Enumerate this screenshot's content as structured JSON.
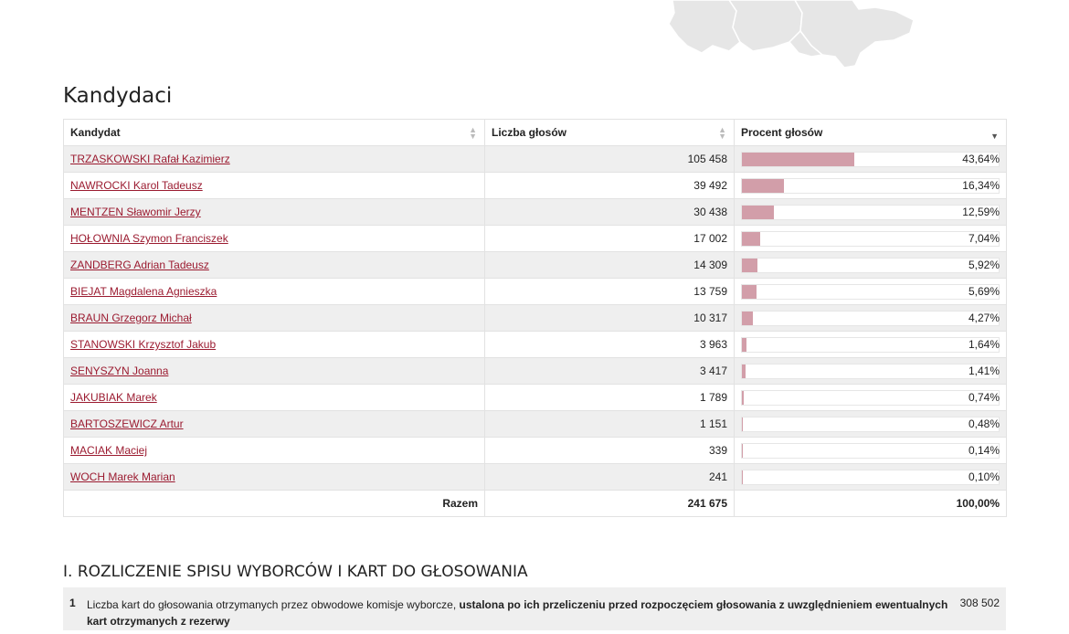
{
  "candidates_section": {
    "title": "Kandydaci",
    "columns": {
      "candidate": "Kandydat",
      "votes": "Liczba głosów",
      "percent": "Procent głosów"
    },
    "rows": [
      {
        "name": "TRZASKOWSKI Rafał Kazimierz",
        "votes": "105 458",
        "percent": "43,64%",
        "share": 43.64
      },
      {
        "name": "NAWROCKI Karol Tadeusz",
        "votes": "39 492",
        "percent": "16,34%",
        "share": 16.34
      },
      {
        "name": "MENTZEN Sławomir Jerzy",
        "votes": "30 438",
        "percent": "12,59%",
        "share": 12.59
      },
      {
        "name": "HOŁOWNIA Szymon Franciszek",
        "votes": "17 002",
        "percent": "7,04%",
        "share": 7.04
      },
      {
        "name": "ZANDBERG Adrian Tadeusz",
        "votes": "14 309",
        "percent": "5,92%",
        "share": 5.92
      },
      {
        "name": "BIEJAT Magdalena Agnieszka",
        "votes": "13 759",
        "percent": "5,69%",
        "share": 5.69
      },
      {
        "name": "BRAUN Grzegorz Michał",
        "votes": "10 317",
        "percent": "4,27%",
        "share": 4.27
      },
      {
        "name": "STANOWSKI Krzysztof Jakub",
        "votes": "3 963",
        "percent": "1,64%",
        "share": 1.64
      },
      {
        "name": "SENYSZYN Joanna",
        "votes": "3 417",
        "percent": "1,41%",
        "share": 1.41
      },
      {
        "name": "JAKUBIAK Marek",
        "votes": "1 789",
        "percent": "0,74%",
        "share": 0.74
      },
      {
        "name": "BARTOSZEWICZ Artur",
        "votes": "1 151",
        "percent": "0,48%",
        "share": 0.48
      },
      {
        "name": "MACIAK Maciej",
        "votes": "339",
        "percent": "0,14%",
        "share": 0.14
      },
      {
        "name": "WOCH Marek Marian",
        "votes": "241",
        "percent": "0,10%",
        "share": 0.1
      }
    ],
    "total": {
      "label": "Razem",
      "votes": "241 675",
      "percent": "100,00%"
    }
  },
  "report_section": {
    "title": "I. ROZLICZENIE SPISU WYBORCÓW I KART DO GŁOSOWANIA",
    "items": [
      {
        "number": "1",
        "text_plain": "Liczba kart do głosowania otrzymanych przez obwodowe komisje wyborcze, ",
        "text_bold": "ustalona po ich przeliczeniu przed rozpoczęciem głosowania z uwzględnieniem ewentualnych kart otrzymanych z rezerwy",
        "value": "308 502"
      }
    ]
  },
  "colors": {
    "link": "#9b1b30",
    "bar": "#d29ea9",
    "row_alt": "#efefef",
    "map": "#e6e6e6"
  }
}
